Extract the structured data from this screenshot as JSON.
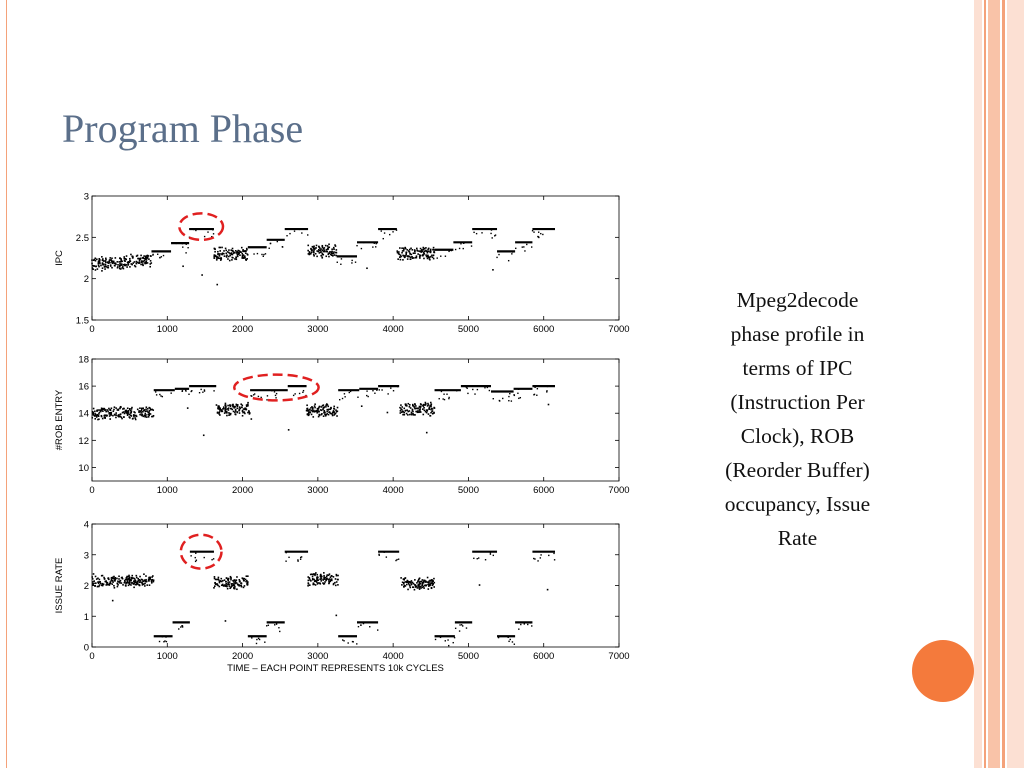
{
  "slide": {
    "title": "Program Phase",
    "caption_lines": [
      "Mpeg2decode",
      "phase profile in",
      "terms of IPC",
      "(Instruction Per",
      "Clock), ROB",
      "(Reorder Buffer)",
      "occupancy, Issue",
      "Rate"
    ],
    "colors": {
      "title": "#5b6f8a",
      "accent_circle": "#f47a3c",
      "stripe_light": "#fce0d3",
      "stripe_mid": "#f9c3a8",
      "highlight": "#e02020"
    }
  },
  "chart_data": [
    {
      "type": "scatter",
      "ylabel": "IPC",
      "xlabel": "",
      "xlim": [
        0,
        7000
      ],
      "ylim": [
        1.5,
        3
      ],
      "xticks": [
        0,
        1000,
        2000,
        3000,
        4000,
        5000,
        6000,
        7000
      ],
      "yticks": [
        1.5,
        2,
        2.5,
        3
      ],
      "ytick_labels": [
        "1.5",
        "2",
        "2.5",
        "3"
      ],
      "phases": [
        {
          "x": [
            0,
            420
          ],
          "y": 2.18,
          "noisy": true
        },
        {
          "x": [
            420,
            790
          ],
          "y": 2.22,
          "noisy": true
        },
        {
          "x": [
            790,
            1050
          ],
          "y": 2.33
        },
        {
          "x": [
            1050,
            1290
          ],
          "y": 2.43
        },
        {
          "x": [
            1290,
            1620
          ],
          "y": 2.6
        },
        {
          "x": [
            1620,
            2070
          ],
          "y": 2.3,
          "noisy": true
        },
        {
          "x": [
            2070,
            2320
          ],
          "y": 2.38
        },
        {
          "x": [
            2320,
            2560
          ],
          "y": 2.47
        },
        {
          "x": [
            2560,
            2870
          ],
          "y": 2.6
        },
        {
          "x": [
            2870,
            3250
          ],
          "y": 2.33,
          "noisy": true
        },
        {
          "x": [
            3250,
            3520
          ],
          "y": 2.27
        },
        {
          "x": [
            3520,
            3800
          ],
          "y": 2.44
        },
        {
          "x": [
            3800,
            4050
          ],
          "y": 2.6
        },
        {
          "x": [
            4050,
            4550
          ],
          "y": 2.3,
          "noisy": true
        },
        {
          "x": [
            4550,
            4800
          ],
          "y": 2.35
        },
        {
          "x": [
            4800,
            5050
          ],
          "y": 2.44
        },
        {
          "x": [
            5050,
            5380
          ],
          "y": 2.6
        },
        {
          "x": [
            5380,
            5620
          ],
          "y": 2.33
        },
        {
          "x": [
            5620,
            5850
          ],
          "y": 2.44
        },
        {
          "x": [
            5850,
            6150
          ],
          "y": 2.6
        }
      ],
      "highlight": {
        "x": 1450,
        "y": 2.63,
        "rx": 290,
        "ry": 0.16
      }
    },
    {
      "type": "scatter",
      "ylabel": "#ROB ENTRY",
      "xlabel": "",
      "xlim": [
        0,
        7000
      ],
      "ylim": [
        9,
        18
      ],
      "xticks": [
        0,
        1000,
        2000,
        3000,
        4000,
        5000,
        6000,
        7000
      ],
      "yticks": [
        10,
        12,
        14,
        16,
        18
      ],
      "ytick_labels": [
        "10",
        "12",
        "14",
        "16",
        "18"
      ],
      "phases": [
        {
          "x": [
            0,
            820
          ],
          "y": 14.0,
          "noisy": true
        },
        {
          "x": [
            820,
            1100
          ],
          "y": 15.7
        },
        {
          "x": [
            1100,
            1290
          ],
          "y": 15.8
        },
        {
          "x": [
            1290,
            1650
          ],
          "y": 16.0
        },
        {
          "x": [
            1650,
            2100
          ],
          "y": 14.3,
          "noisy": true
        },
        {
          "x": [
            2100,
            2600
          ],
          "y": 15.7
        },
        {
          "x": [
            2600,
            2850
          ],
          "y": 16.0
        },
        {
          "x": [
            2850,
            3270
          ],
          "y": 14.2,
          "noisy": true
        },
        {
          "x": [
            3270,
            3550
          ],
          "y": 15.7
        },
        {
          "x": [
            3550,
            3800
          ],
          "y": 15.8
        },
        {
          "x": [
            3800,
            4080
          ],
          "y": 16.0
        },
        {
          "x": [
            4080,
            4550
          ],
          "y": 14.3,
          "noisy": true
        },
        {
          "x": [
            4550,
            4900
          ],
          "y": 15.7
        },
        {
          "x": [
            4900,
            5300
          ],
          "y": 16.0
        },
        {
          "x": [
            5300,
            5600
          ],
          "y": 15.6
        },
        {
          "x": [
            5600,
            5850
          ],
          "y": 15.8
        },
        {
          "x": [
            5850,
            6150
          ],
          "y": 16.0
        }
      ],
      "highlight": {
        "x": 2450,
        "y": 15.9,
        "rx": 560,
        "ry": 0.95
      }
    },
    {
      "type": "scatter",
      "ylabel": "ISSUE RATE",
      "xlabel": "TIME – EACH POINT REPRESENTS 10k CYCLES",
      "xlim": [
        0,
        7000
      ],
      "ylim": [
        0,
        4
      ],
      "xticks": [
        0,
        1000,
        2000,
        3000,
        4000,
        5000,
        6000,
        7000
      ],
      "yticks": [
        0,
        1,
        2,
        3,
        4
      ],
      "ytick_labels": [
        "0",
        "1",
        "2",
        "3",
        "4"
      ],
      "phases": [
        {
          "x": [
            0,
            820
          ],
          "y": 2.15,
          "noisy": true
        },
        {
          "x": [
            820,
            1070
          ],
          "y": 0.35
        },
        {
          "x": [
            1070,
            1300
          ],
          "y": 0.8
        },
        {
          "x": [
            1300,
            1620
          ],
          "y": 3.1
        },
        {
          "x": [
            1620,
            2070
          ],
          "y": 2.1,
          "noisy": true
        },
        {
          "x": [
            2070,
            2320
          ],
          "y": 0.35
        },
        {
          "x": [
            2320,
            2560
          ],
          "y": 0.8
        },
        {
          "x": [
            2560,
            2870
          ],
          "y": 3.1
        },
        {
          "x": [
            2870,
            3270
          ],
          "y": 2.2,
          "noisy": true
        },
        {
          "x": [
            3270,
            3520
          ],
          "y": 0.35
        },
        {
          "x": [
            3520,
            3800
          ],
          "y": 0.8
        },
        {
          "x": [
            3800,
            4080
          ],
          "y": 3.1
        },
        {
          "x": [
            4080,
            4550
          ],
          "y": 2.05,
          "noisy": true
        },
        {
          "x": [
            4550,
            4820
          ],
          "y": 0.35
        },
        {
          "x": [
            4820,
            5050
          ],
          "y": 0.8
        },
        {
          "x": [
            5050,
            5380
          ],
          "y": 3.1
        },
        {
          "x": [
            5380,
            5620
          ],
          "y": 0.35
        },
        {
          "x": [
            5620,
            5850
          ],
          "y": 0.8
        },
        {
          "x": [
            5850,
            6150
          ],
          "y": 3.1
        }
      ],
      "highlight": {
        "x": 1450,
        "y": 3.1,
        "rx": 270,
        "ry": 0.55
      }
    }
  ]
}
